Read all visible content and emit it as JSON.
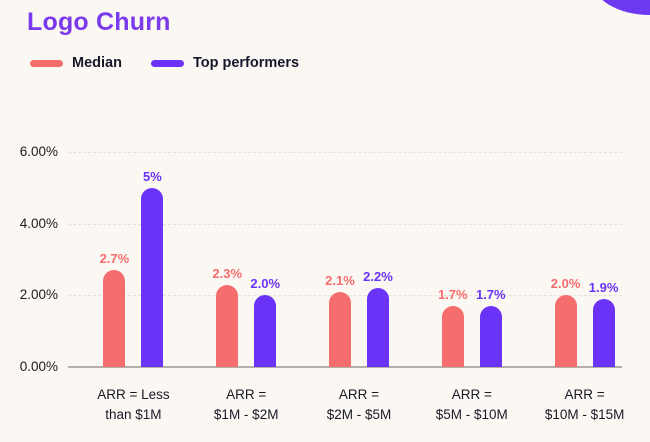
{
  "header": {
    "title": "Logo Churn"
  },
  "theme": {
    "background": "#FBF7F3",
    "title_color": "#7C3AED",
    "median_color": "#F56D6D",
    "top_performers_color": "#6A33F7",
    "blob_color": "#6C38F2",
    "text_color": "#17172B"
  },
  "legend": [
    {
      "label": "Median",
      "color": "#F56D6D"
    },
    {
      "label": "Top performers",
      "color": "#6A33F7"
    }
  ],
  "chart_data": {
    "type": "bar",
    "title": "Logo Churn",
    "categories": [
      "ARR = Less than $1M",
      "ARR = $1M - $2M",
      "ARR = $2M - $5M",
      "ARR = $5M - $10M",
      "ARR = $10M - $15M"
    ],
    "category_lines": [
      [
        "ARR = Less",
        "than $1M"
      ],
      [
        "ARR =",
        "$1M - $2M"
      ],
      [
        "ARR =",
        "$2M - $5M"
      ],
      [
        "ARR =",
        "$5M - $10M"
      ],
      [
        "ARR =",
        "$10M - $15M"
      ]
    ],
    "series": [
      {
        "name": "Median",
        "color": "#F56D6D",
        "values": [
          2.7,
          2.3,
          2.1,
          1.7,
          2.0
        ],
        "labels": [
          "2.7%",
          "2.3%",
          "2.1%",
          "1.7%",
          "2.0%"
        ]
      },
      {
        "name": "Top performers",
        "color": "#6A33F7",
        "values": [
          5.0,
          2.0,
          2.2,
          1.7,
          1.9
        ],
        "labels": [
          "5%",
          "2.0%",
          "2.2%",
          "1.7%",
          "1.9%"
        ]
      }
    ],
    "ylabel": "",
    "xlabel": "",
    "y_axis": {
      "min": 0,
      "max": 6,
      "ticks": [
        "6.00%",
        "4.00%",
        "2.00%",
        "0.00%"
      ]
    },
    "grid": true,
    "legend_position": "top-left"
  }
}
